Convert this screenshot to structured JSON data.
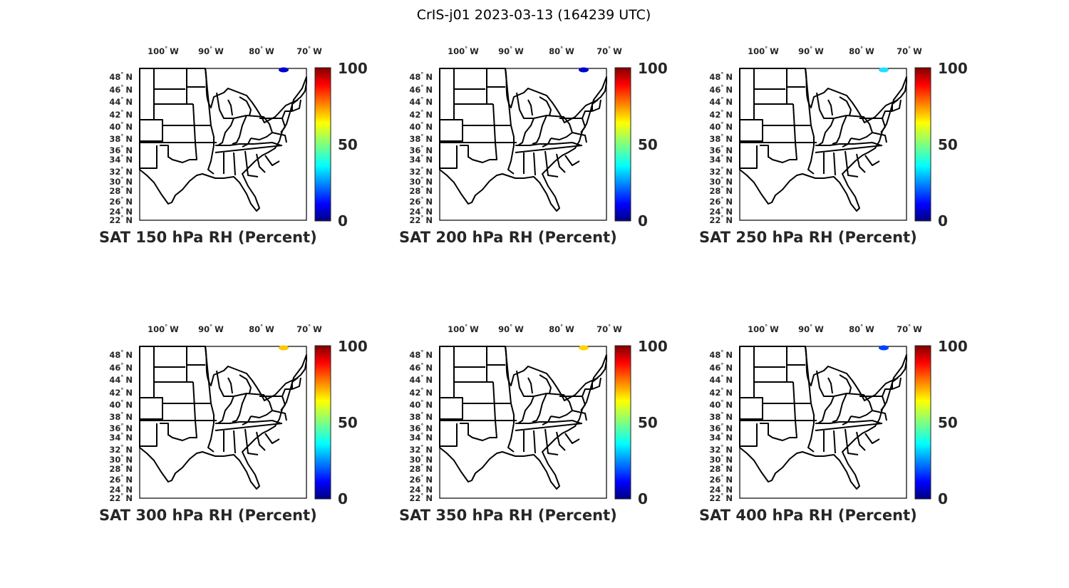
{
  "figure": {
    "title": "CrIS-j01 2023-03-13 (164239 UTC)"
  },
  "colormap": "jet",
  "colorbar": {
    "min": 0,
    "max": 100,
    "ticks": [
      "0",
      "50",
      "100"
    ]
  },
  "lon_ticks": [
    {
      "deg": "100",
      "dir": "W"
    },
    {
      "deg": "90",
      "dir": "W"
    },
    {
      "deg": "80",
      "dir": "W"
    },
    {
      "deg": "70",
      "dir": "W"
    }
  ],
  "lat_ticks": [
    {
      "deg": "48",
      "dir": "N"
    },
    {
      "deg": "46",
      "dir": "N"
    },
    {
      "deg": "44",
      "dir": "N"
    },
    {
      "deg": "42",
      "dir": "N"
    },
    {
      "deg": "40",
      "dir": "N"
    },
    {
      "deg": "38",
      "dir": "N"
    },
    {
      "deg": "36",
      "dir": "N"
    },
    {
      "deg": "34",
      "dir": "N"
    },
    {
      "deg": "32",
      "dir": "N"
    },
    {
      "deg": "30",
      "dir": "N"
    },
    {
      "deg": "28",
      "dir": "N"
    },
    {
      "deg": "26",
      "dir": "N"
    },
    {
      "deg": "24",
      "dir": "N"
    },
    {
      "deg": "22",
      "dir": "N"
    }
  ],
  "panels": [
    {
      "title": "SAT 150 hPa RH (Percent)",
      "rh": 5,
      "marker_color": "#0000cd"
    },
    {
      "title": "SAT 200 hPa RH (Percent)",
      "rh": 5,
      "marker_color": "#0000cd"
    },
    {
      "title": "SAT 250 hPa RH (Percent)",
      "rh": 40,
      "marker_color": "#20e0ff"
    },
    {
      "title": "SAT 300 hPa RH (Percent)",
      "rh": 68,
      "marker_color": "#ffc800"
    },
    {
      "title": "SAT 350 hPa RH (Percent)",
      "rh": 67,
      "marker_color": "#ffd500"
    },
    {
      "title": "SAT 400 hPa RH (Percent)",
      "rh": 15,
      "marker_color": "#0040ff"
    }
  ]
}
